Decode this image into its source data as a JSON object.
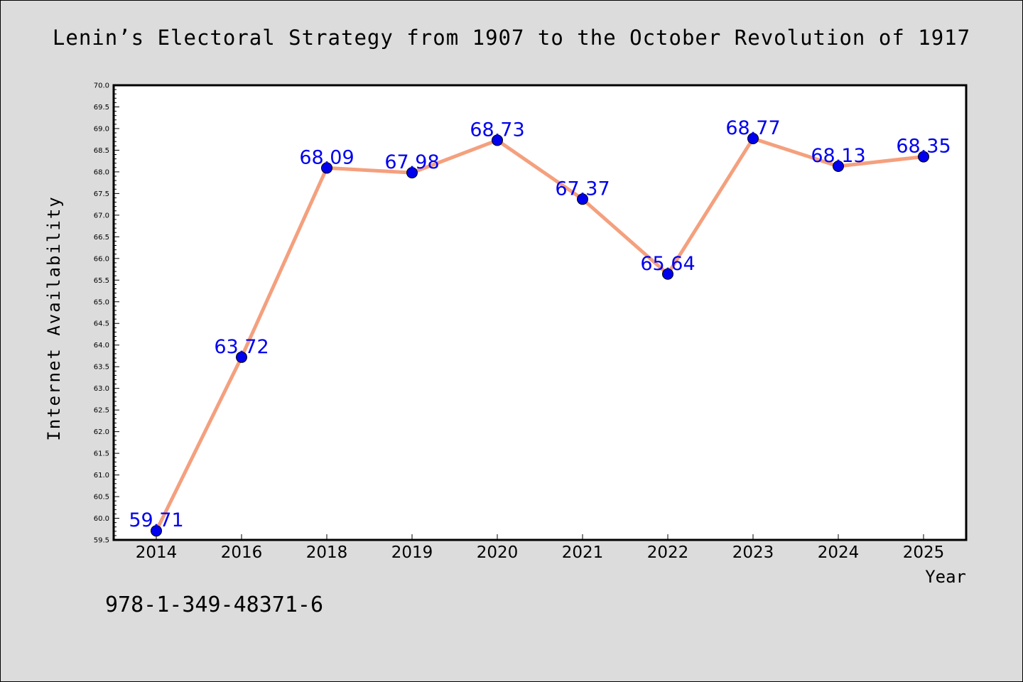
{
  "chart_data": {
    "type": "line",
    "title": "Lenin’s Electoral Strategy from 1907 to the October Revolution of 1917",
    "xlabel": "Year",
    "ylabel": "Internet Availability",
    "categories": [
      "2014",
      "2016",
      "2018",
      "2019",
      "2020",
      "2021",
      "2022",
      "2023",
      "2024",
      "2025"
    ],
    "series": [
      {
        "values": [
          59.71,
          63.72,
          68.09,
          67.98,
          68.73,
          67.37,
          65.64,
          68.77,
          68.13,
          68.35
        ]
      }
    ],
    "data_labels": [
      "59.71",
      "63.72",
      "68.09",
      "67.98",
      "68.73",
      "67.37",
      "65.64",
      "68.77",
      "68.13",
      "68.35"
    ],
    "ylim": [
      59.5,
      70.0
    ],
    "ytick_step": 0.5,
    "grid": false,
    "line_color": "#f4a07e",
    "marker_color": "#0000ee",
    "label_color": "#0000ee",
    "background_color": "#dcdcdc",
    "plot_background_color": "#ffffff"
  },
  "footer_text": "978-1-349-48371-6"
}
